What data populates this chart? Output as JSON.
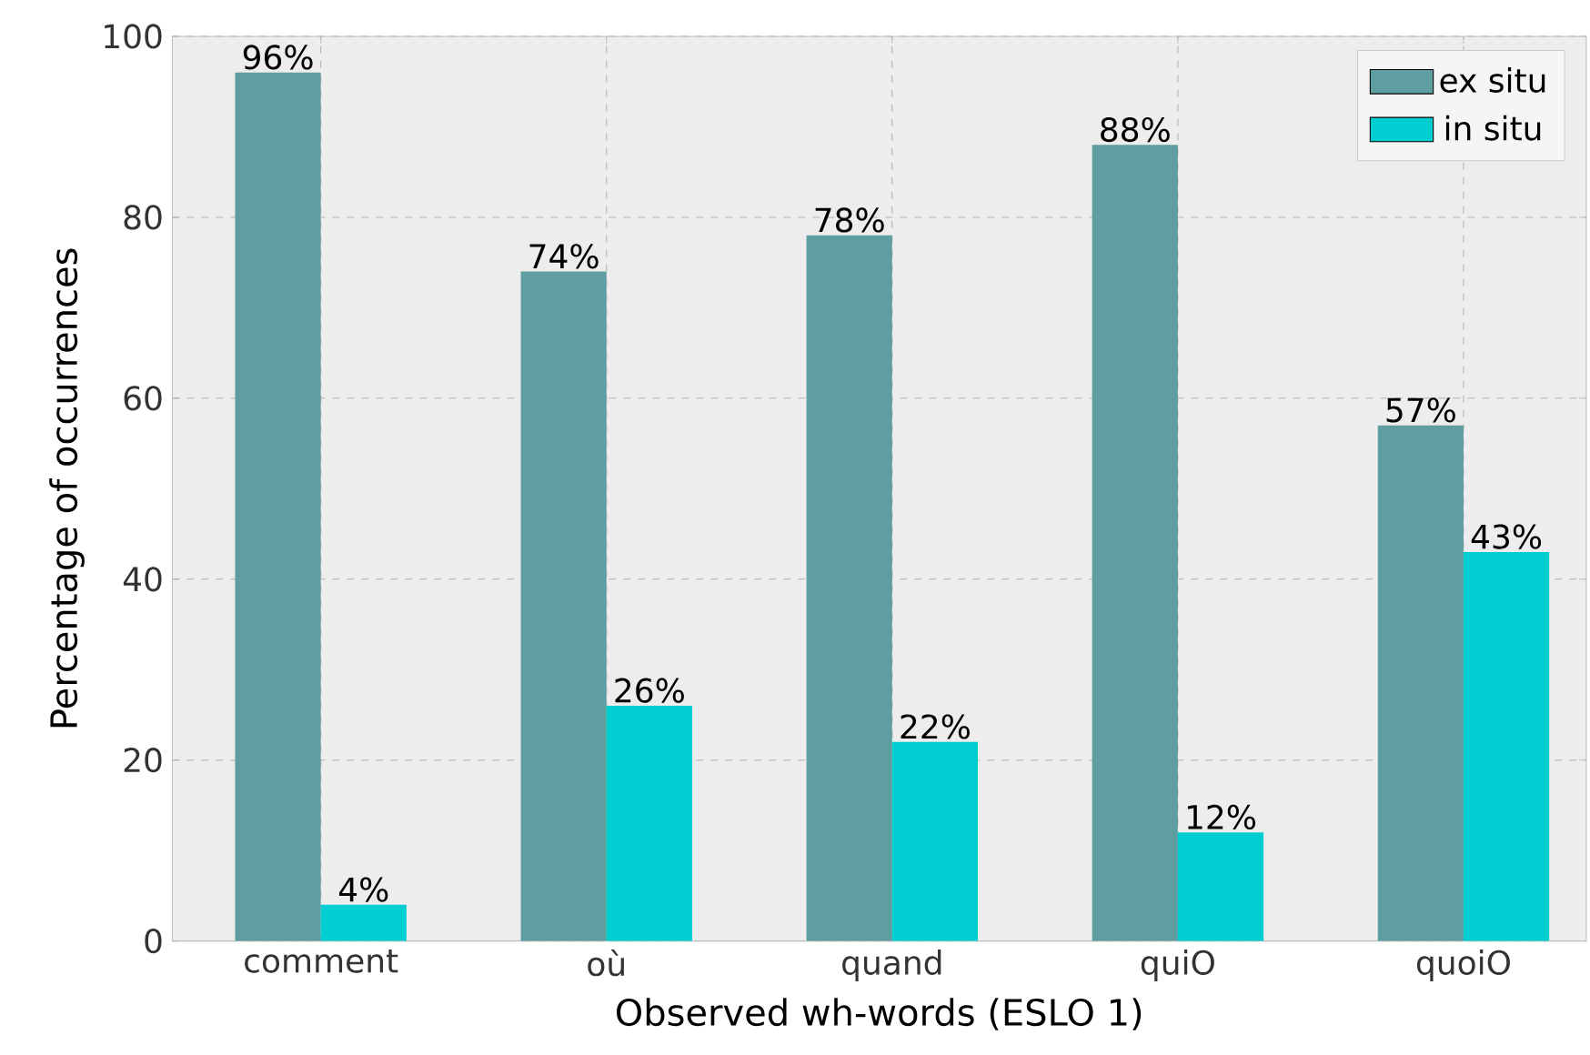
{
  "chart_data": {
    "type": "bar",
    "xlabel": "Observed wh-words (ESLO 1)",
    "ylabel": "Percentage of occurrences",
    "categories": [
      "comment",
      "où",
      "quand",
      "quiO",
      "quoiO"
    ],
    "series": [
      {
        "name": "ex situ",
        "color": "#5f9ea0",
        "values": [
          96,
          74,
          78,
          88,
          57
        ],
        "value_labels": [
          "96%",
          "74%",
          "78%",
          "88%",
          "57%"
        ]
      },
      {
        "name": "in situ",
        "color": "#00ced1",
        "values": [
          4,
          26,
          22,
          12,
          43
        ],
        "value_labels": [
          "4%",
          "26%",
          "22%",
          "12%",
          "43%"
        ]
      }
    ],
    "ylim": [
      0,
      100
    ],
    "yticks": [
      0,
      20,
      40,
      60,
      80,
      100
    ],
    "grid": true,
    "legend": "top right"
  }
}
